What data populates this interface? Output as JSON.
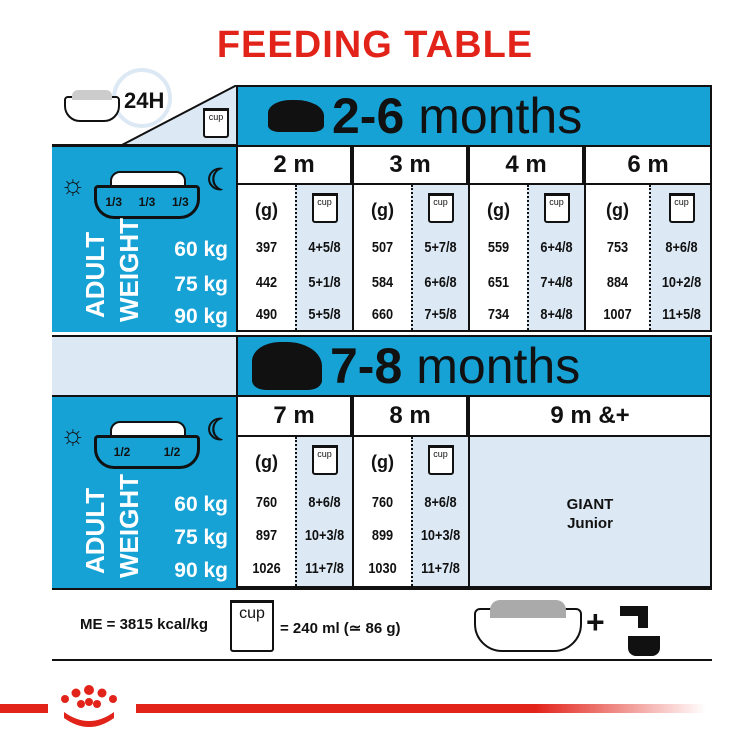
{
  "title": "FEEDING TABLE",
  "header": {
    "period_label": "24H",
    "cup_label": "cup"
  },
  "sections": [
    {
      "range": "2-6",
      "unit": "months",
      "split": [
        "1/3",
        "1/3",
        "1/3"
      ],
      "months": [
        {
          "label": "2 m",
          "g": [
            "397",
            "442",
            "490"
          ],
          "cups": [
            "4+5/8",
            "5+1/8",
            "5+5/8"
          ]
        },
        {
          "label": "3 m",
          "g": [
            "507",
            "584",
            "660"
          ],
          "cups": [
            "5+7/8",
            "6+6/8",
            "7+5/8"
          ]
        },
        {
          "label": "4 m",
          "g": [
            "559",
            "651",
            "734"
          ],
          "cups": [
            "6+4/8",
            "7+4/8",
            "8+4/8"
          ]
        },
        {
          "label": "6 m",
          "g": [
            "753",
            "884",
            "1007"
          ],
          "cups": [
            "8+6/8",
            "10+2/8",
            "11+5/8"
          ]
        }
      ]
    },
    {
      "range": "7-8",
      "unit": "months",
      "split": [
        "1/2",
        "1/2"
      ],
      "months": [
        {
          "label": "7 m",
          "g": [
            "760",
            "897",
            "1026"
          ],
          "cups": [
            "8+6/8",
            "10+3/8",
            "11+7/8"
          ]
        },
        {
          "label": "8 m",
          "g": [
            "760",
            "899",
            "1030"
          ],
          "cups": [
            "8+6/8",
            "10+3/8",
            "11+7/8"
          ]
        }
      ],
      "extra": {
        "label": "9 m &+",
        "product_line1": "GIANT",
        "product_line2": "Junior"
      }
    }
  ],
  "g_label": "(g)",
  "adult_label": "ADULT",
  "weight_label": "WEIGHT",
  "weights": [
    "60 kg",
    "75 kg",
    "90 kg"
  ],
  "footer": {
    "me": "ME = 3815 kcal/kg",
    "cup": "cup",
    "cup_eq": "= 240 ml (≃ 86 g)",
    "plus": "+"
  },
  "colors": {
    "brand_red": "#e2231a",
    "blue": "#17a2d6",
    "light_blue": "#dce9f5"
  }
}
